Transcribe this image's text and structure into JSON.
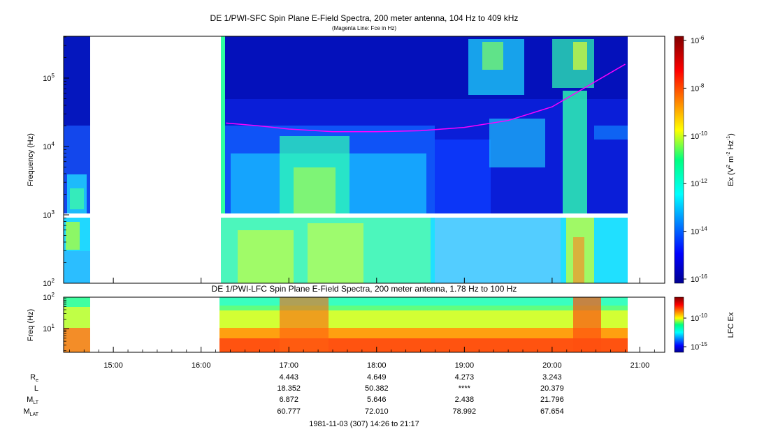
{
  "chart_data": [
    {
      "type": "heatmap",
      "title": "DE 1/PWI-SFC  Spin Plane E-Field Spectra, 200 meter antenna, 104 Hz to 409 kHz",
      "subtitle": "(Magenta Line: Fce in Hz)",
      "ylabel": "Frequency (Hz)",
      "y_scale": "log",
      "ylim": [
        100,
        409000
      ],
      "y_ticks": [
        {
          "v": 100,
          "b": "10",
          "e": "2"
        },
        {
          "v": 1000,
          "b": "10",
          "e": "3"
        },
        {
          "v": 10000,
          "b": "10",
          "e": "4"
        },
        {
          "v": 100000,
          "b": "10",
          "e": "5"
        }
      ],
      "colorbar": {
        "label_pre": "Ex (V",
        "label_e1": "2",
        "label_mid": " m",
        "label_e2": "-2",
        "label_mid2": " Hz",
        "label_e3": "-1",
        "label_post": ")",
        "scale": "log",
        "range": [
          1e-16,
          1e-06
        ],
        "ticks": [
          {
            "b": "10",
            "e": "-6"
          },
          {
            "b": "10",
            "e": "-8"
          },
          {
            "b": "10",
            "e": "-10"
          },
          {
            "b": "10",
            "e": "-12"
          },
          {
            "b": "10",
            "e": "-14"
          },
          {
            "b": "10",
            "e": "-16"
          }
        ]
      },
      "series": [
        {
          "name": "Fce in Hz",
          "color": "#ff00ff",
          "x": [
            "16:17",
            "16:40",
            "17:00",
            "17:30",
            "18:00",
            "18:30",
            "19:00",
            "19:30",
            "20:00",
            "20:30",
            "20:50"
          ],
          "values": [
            22000,
            20000,
            18000,
            16500,
            16500,
            17000,
            19000,
            24000,
            38000,
            90000,
            160000
          ]
        }
      ]
    },
    {
      "type": "heatmap",
      "title": "DE 1/PWI-LFC  Spin Plane E-Field Spectra, 200 meter antenna, 1.78 Hz to 100 Hz",
      "ylabel": "Freq (Hz)",
      "y_scale": "log",
      "ylim": [
        1.78,
        100
      ],
      "y_ticks": [
        {
          "v": 10,
          "b": "10",
          "e": "1"
        },
        {
          "v": 100,
          "b": "10",
          "e": "2"
        }
      ],
      "colorbar": {
        "label": "LFC Ex",
        "scale": "log",
        "ticks": [
          {
            "b": "10",
            "e": "-10"
          },
          {
            "b": "10",
            "e": "-15"
          }
        ]
      }
    }
  ],
  "time_axis": {
    "ticks": [
      "15:00",
      "16:00",
      "17:00",
      "18:00",
      "19:00",
      "20:00",
      "21:00"
    ]
  },
  "ephemeris": {
    "labels": [
      {
        "main": "R",
        "sub": "e"
      },
      {
        "main": "L",
        "sub": ""
      },
      {
        "main": "M",
        "sub": "LT"
      },
      {
        "main": "M",
        "sub": "LAT"
      }
    ],
    "columns": [
      {
        "time": "17:00",
        "values": [
          "4.443",
          "18.352",
          "6.872",
          "60.777"
        ]
      },
      {
        "time": "18:00",
        "values": [
          "4.649",
          "50.382",
          "5.646",
          "72.010"
        ]
      },
      {
        "time": "19:00",
        "values": [
          "4.273",
          "****",
          "2.438",
          "78.992"
        ]
      },
      {
        "time": "20:00",
        "values": [
          "3.243",
          "20.379",
          "21.796",
          "67.654"
        ]
      }
    ]
  },
  "footer": "1981-11-03 (307) 14:26 to 21:17"
}
